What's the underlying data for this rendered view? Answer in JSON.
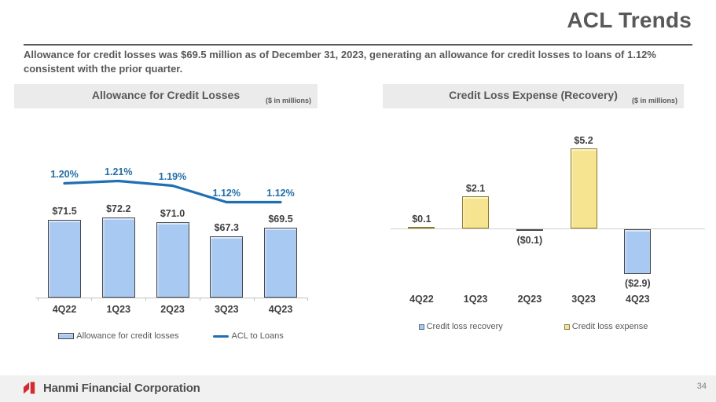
{
  "slide": {
    "title": "ACL Trends",
    "intro": "Allowance for credit losses was $69.5 million as of December 31, 2023, generating an allowance for credit losses to loans of 1.12% consistent with the prior quarter.",
    "footer_brand": "Hanmi Financial Corporation",
    "page_number": "34"
  },
  "colors": {
    "accent_blue": "#1f6fb5",
    "bar_blue": "#a8c9f2",
    "bar_yellow": "#f7e491",
    "heading_gray": "#595959",
    "header_bar_bg": "#ebebeb",
    "footer_bg": "#f1f1f2",
    "hanmi_red": "#d9272e"
  },
  "chart_data": [
    {
      "id": "allowance-for-credit-losses",
      "type": "bar",
      "title": "Allowance for Credit Losses",
      "units_note": "($ in millions)",
      "categories": [
        "4Q22",
        "1Q23",
        "2Q23",
        "3Q23",
        "4Q23"
      ],
      "series": [
        {
          "name": "Allowance for credit losses",
          "type": "bar",
          "values": [
            71.5,
            72.2,
            71.0,
            67.3,
            69.5
          ],
          "labels": [
            "$71.5",
            "$72.2",
            "$71.0",
            "$67.3",
            "$69.5"
          ],
          "color": "#a8c9f2"
        },
        {
          "name": "ACL to Loans",
          "type": "line",
          "values": [
            1.2,
            1.21,
            1.19,
            1.12,
            1.12
          ],
          "labels": [
            "1.20%",
            "1.21%",
            "1.19%",
            "1.12%",
            "1.12%"
          ],
          "color": "#1f6fb5"
        }
      ],
      "bar_axis_range": [
        52,
        76
      ],
      "line_axis_range": [
        1.05,
        1.3
      ],
      "grid": false,
      "legend_position": "bottom"
    },
    {
      "id": "credit-loss-expense-recovery",
      "type": "bar",
      "title": "Credit Loss Expense (Recovery)",
      "units_note": "($ in millions)",
      "categories": [
        "4Q22",
        "1Q23",
        "2Q23",
        "3Q23",
        "4Q23"
      ],
      "values": [
        0.1,
        2.1,
        -0.1,
        5.2,
        -2.9
      ],
      "labels": [
        "$0.1",
        "$2.1",
        "($0.1)",
        "$5.2",
        "($2.9)"
      ],
      "ylim": [
        -3.5,
        6
      ],
      "grid": false,
      "legend": [
        {
          "label": "Credit loss recovery",
          "color": "#a8c9f2"
        },
        {
          "label": "Credit loss expense",
          "color": "#f7e491"
        }
      ],
      "legend_position": "bottom"
    }
  ]
}
